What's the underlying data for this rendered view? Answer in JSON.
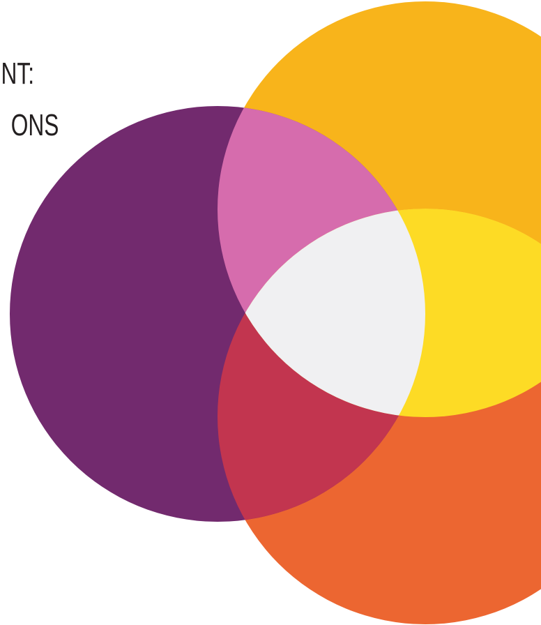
{
  "slide": {
    "title_line_1": "NT:",
    "title_line_2": "ONS"
  },
  "venn": {
    "colors": {
      "purple": "#722a6e",
      "yellow_orange": "#f8b41b",
      "orange": "#ec6631",
      "pink": "#d66cad",
      "yellow": "#fddb25",
      "red": "#c2354f",
      "center": "#f0f0f2"
    }
  }
}
